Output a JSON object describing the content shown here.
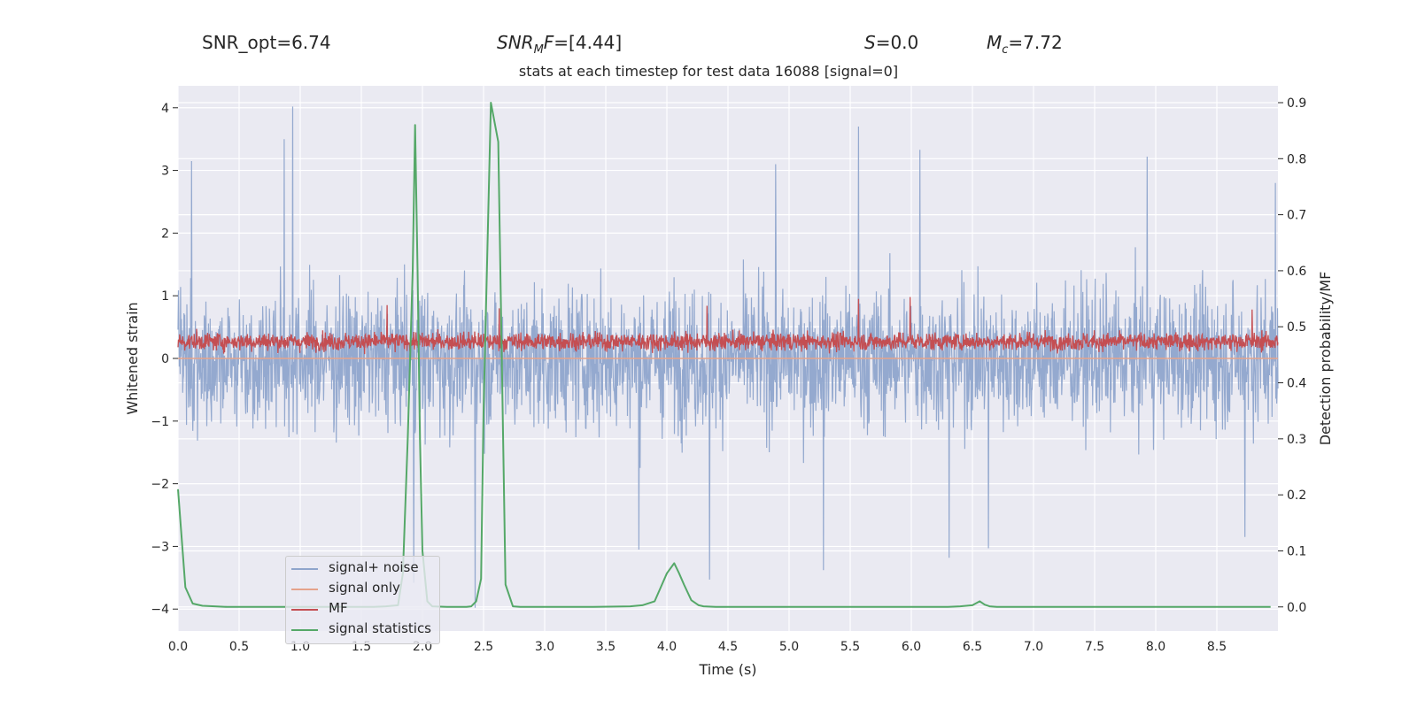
{
  "header": {
    "snr_opt": "SNR_opt=6.74",
    "snr_mf_main": "SNR",
    "snr_mf_sub": "M",
    "snr_mf_tail": "F",
    "snr_mf_value": "=[4.44]",
    "s_var": "S",
    "s_value": "=0.0",
    "mc_var": "M",
    "mc_sub": "c",
    "mc_value": "=7.72"
  },
  "chart_data": {
    "type": "line",
    "title": "stats at each timestep for test data 16088 [signal=0]",
    "xlabel": "Time (s)",
    "ylabel": "Whitened strain",
    "ylabel_right": "Detection probability/MF",
    "xlim": [
      0,
      9
    ],
    "ylim": [
      -4.35,
      4.35
    ],
    "ylim_right": [
      -0.043,
      0.93
    ],
    "x_ticks": [
      0.0,
      0.5,
      1.0,
      1.5,
      2.0,
      2.5,
      3.0,
      3.5,
      4.0,
      4.5,
      5.0,
      5.5,
      6.0,
      6.5,
      7.0,
      7.5,
      8.0,
      8.5
    ],
    "x_tick_labels": [
      "0.0",
      "0.5",
      "1.0",
      "1.5",
      "2.0",
      "2.5",
      "3.0",
      "3.5",
      "4.0",
      "4.5",
      "5.0",
      "5.5",
      "6.0",
      "6.5",
      "7.0",
      "7.5",
      "8.0",
      "8.5"
    ],
    "y_ticks": [
      -4,
      -3,
      -2,
      -1,
      0,
      1,
      2,
      3,
      4
    ],
    "y_tick_labels": [
      "−4",
      "−3",
      "−2",
      "−1",
      "0",
      "1",
      "2",
      "3",
      "4"
    ],
    "y_ticks_right": [
      0.0,
      0.1,
      0.2,
      0.3,
      0.4,
      0.5,
      0.6,
      0.7,
      0.8,
      0.9
    ],
    "y_tick_labels_right": [
      "0.0",
      "0.1",
      "0.2",
      "0.3",
      "0.4",
      "0.5",
      "0.6",
      "0.7",
      "0.8",
      "0.9"
    ],
    "grid": true,
    "legend_position": "lower-left",
    "series": [
      {
        "name": "signal+ noise",
        "color": "#8fa5cc",
        "axis": "left",
        "description": "noisy whitened strain, approx. between -1.3 and 1.4 with peaks up to ~4",
        "peaks": [
          [
            0.94,
            4.02
          ],
          [
            0.87,
            3.5
          ],
          [
            0.11,
            3.15
          ],
          [
            5.57,
            3.7
          ],
          [
            6.07,
            3.33
          ],
          [
            7.93,
            3.22
          ],
          [
            4.89,
            3.1
          ],
          [
            8.98,
            2.8
          ]
        ],
        "troughs": [
          [
            2.43,
            -3.98
          ],
          [
            1.93,
            -3.58
          ],
          [
            4.35,
            -3.53
          ],
          [
            5.28,
            -3.38
          ],
          [
            6.31,
            -3.18
          ],
          [
            3.77,
            -3.05
          ],
          [
            6.63,
            -3.03
          ],
          [
            8.73,
            -2.85
          ]
        ]
      },
      {
        "name": "signal only",
        "color": "#e5a38b",
        "axis": "left",
        "x": [
          0,
          9
        ],
        "y": [
          0.0,
          0.0
        ]
      },
      {
        "name": "MF",
        "color": "#c44e52",
        "axis": "left",
        "description": "matched-filter output, approx. between 0.05 and 0.5 with peaks up to ~0.9",
        "peaks": [
          [
            5.57,
            0.95
          ],
          [
            5.99,
            0.98
          ],
          [
            1.71,
            0.85
          ],
          [
            4.33,
            0.84
          ],
          [
            8.79,
            0.78
          ],
          [
            2.63,
            0.8
          ]
        ]
      },
      {
        "name": "signal statistics",
        "color": "#55a868",
        "axis": "right",
        "x": [
          0.0,
          0.06,
          0.12,
          0.2,
          0.3,
          0.4,
          0.6,
          0.8,
          1.0,
          1.2,
          1.4,
          1.6,
          1.7,
          1.8,
          1.84,
          1.88,
          1.92,
          1.94,
          1.96,
          1.98,
          2.0,
          2.04,
          2.08,
          2.2,
          2.3,
          2.36,
          2.4,
          2.44,
          2.48,
          2.5,
          2.56,
          2.62,
          2.68,
          2.74,
          2.8,
          3.0,
          3.4,
          3.7,
          3.8,
          3.9,
          3.95,
          4.0,
          4.06,
          4.1,
          4.14,
          4.2,
          4.26,
          4.3,
          4.4,
          5.0,
          5.5,
          6.0,
          6.3,
          6.4,
          6.5,
          6.56,
          6.6,
          6.64,
          6.7,
          7.0,
          8.0,
          8.94
        ],
        "y": [
          0.21,
          0.035,
          0.006,
          0.002,
          0.001,
          0.0,
          0.0,
          0.0,
          0.0,
          0.0,
          0.0,
          0.0,
          0.001,
          0.003,
          0.06,
          0.3,
          0.6,
          0.86,
          0.6,
          0.3,
          0.1,
          0.01,
          0.001,
          0.0,
          0.0,
          0.0,
          0.001,
          0.01,
          0.05,
          0.35,
          0.9,
          0.83,
          0.04,
          0.001,
          0.0,
          0.0,
          0.0,
          0.001,
          0.003,
          0.01,
          0.035,
          0.06,
          0.078,
          0.06,
          0.04,
          0.012,
          0.003,
          0.001,
          0.0,
          0.0,
          0.0,
          0.0,
          0.0,
          0.001,
          0.003,
          0.01,
          0.004,
          0.001,
          0.0,
          0.0,
          0.0,
          0.0
        ]
      }
    ]
  }
}
